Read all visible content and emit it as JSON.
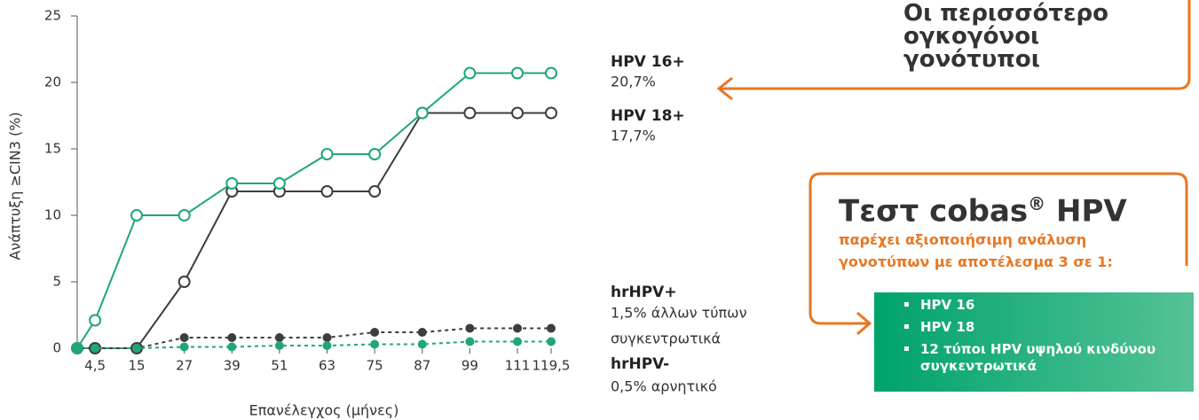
{
  "chart_data": {
    "type": "line",
    "ylabel": "Ανάπτυξη ≥CIN3 (%)",
    "xlabel": "Επανέλεγχος (μήνες)",
    "x": [
      0,
      4.5,
      15,
      27,
      39,
      51,
      63,
      75,
      87,
      99,
      111,
      119.5
    ],
    "xlim": [
      0,
      119.5
    ],
    "xticks": [
      {
        "value": 4.5,
        "label": "4,5"
      },
      15,
      27,
      39,
      51,
      63,
      75,
      87,
      99,
      111,
      {
        "value": 119.5,
        "label": "119,5"
      }
    ],
    "ylim": [
      0,
      25
    ],
    "yticks": [
      0,
      5,
      10,
      15,
      20,
      25
    ],
    "series": [
      {
        "name": "HPV 16+",
        "label": [
          "20,7%"
        ],
        "color": "#1fa67a",
        "style": "solid",
        "values": [
          0,
          2.1,
          10,
          10,
          12.4,
          12.4,
          14.6,
          14.6,
          17.7,
          20.7,
          20.7,
          20.7
        ]
      },
      {
        "name": "HPV 18+",
        "label": [
          "17,7%"
        ],
        "color": "#3d3d3d",
        "style": "solid",
        "values": [
          0,
          0,
          0,
          5,
          11.8,
          11.8,
          11.8,
          11.8,
          17.7,
          17.7,
          17.7,
          17.7
        ]
      },
      {
        "name": "hrHPV+",
        "label": [
          "1,5% άλλων τύπων",
          "συγκεντρωτικά"
        ],
        "color": "#3d3d3d",
        "style": "dotted",
        "values": [
          0,
          0,
          0,
          0.8,
          0.8,
          0.8,
          0.8,
          1.2,
          1.2,
          1.5,
          1.5,
          1.5
        ]
      },
      {
        "name": "hrHPV-",
        "label": [
          "0,5% αρνητικό"
        ],
        "color": "#1fa67a",
        "style": "dotted",
        "values": [
          0,
          0,
          0,
          0.1,
          0.1,
          0.2,
          0.2,
          0.3,
          0.3,
          0.5,
          0.5,
          0.5
        ]
      }
    ],
    "annotations": {
      "box1": [
        "Οι περισσότερο",
        "ογκογόνοι",
        "γονότυποι"
      ],
      "box2_title": "Τεστ cobas",
      "box2_mark": "®",
      "box2_title_end": "HPV",
      "box2_sub": [
        "παρέχει αξιοποιήσιμη ανάλυση",
        "γονοτύπων με αποτέλεσμα 3 σε 1:"
      ],
      "list": [
        "HPV 16",
        "HPV 18",
        [
          "12 τύποι HPV υψηλού κινδύνου",
          "συγκεντρωτικά"
        ]
      ]
    }
  }
}
